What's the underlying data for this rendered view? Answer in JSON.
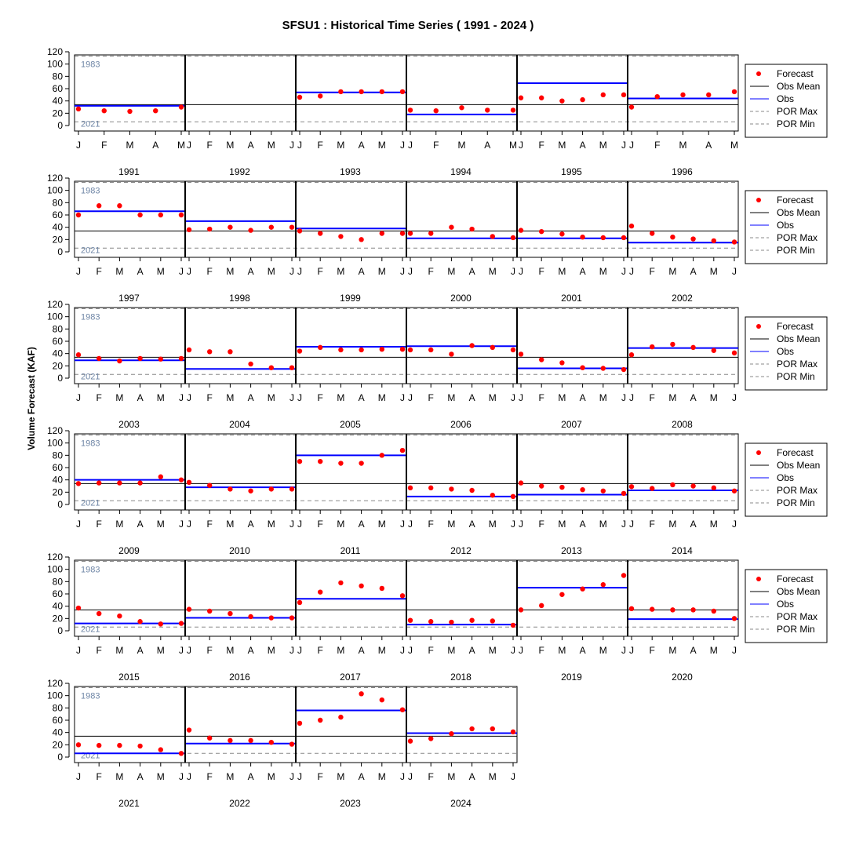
{
  "chart_data": {
    "type": "scatter",
    "title": "SFSU1 : Historical Time Series ( 1991 - 2024 )",
    "ylabel": "Volume Forecast (KAF)",
    "ylim": [
      0,
      120
    ],
    "yticks": [
      0,
      20,
      40,
      60,
      80,
      100,
      120
    ],
    "obs_mean": 34,
    "por_max": {
      "value": 113,
      "label": "1983"
    },
    "por_min": {
      "value": 6,
      "label": "2021"
    },
    "legend": [
      "Forecast",
      "Obs Mean",
      "Obs",
      "POR Max",
      "POR Min"
    ],
    "colors": {
      "forecast": "#ff0000",
      "obs": "#0000ff",
      "mean": "#000000",
      "por": "#888888",
      "porLabel": "#6f86a6"
    },
    "months": [
      "J",
      "F",
      "M",
      "A",
      "M",
      "J"
    ],
    "years": [
      {
        "year": "1991",
        "months": [
          "J",
          "F",
          "M",
          "A",
          "M"
        ],
        "obs": 32,
        "forecast": [
          27,
          24,
          23,
          24,
          30
        ]
      },
      {
        "year": "1992",
        "months": [
          "J",
          "F",
          "M",
          "A",
          "M",
          "J"
        ],
        "obs": null,
        "forecast": []
      },
      {
        "year": "1993",
        "months": [
          "J",
          "F",
          "M",
          "A",
          "M",
          "J"
        ],
        "obs": 54,
        "forecast": [
          46,
          48,
          55,
          55,
          55,
          55
        ]
      },
      {
        "year": "1994",
        "months": [
          "J",
          "F",
          "M",
          "A",
          "M"
        ],
        "obs": 18,
        "forecast": [
          25,
          24,
          29,
          25,
          25
        ]
      },
      {
        "year": "1995",
        "months": [
          "J",
          "F",
          "M",
          "A",
          "M",
          "J"
        ],
        "obs": 69,
        "forecast": [
          45,
          45,
          40,
          42,
          50,
          50
        ]
      },
      {
        "year": "1996",
        "months": [
          "J",
          "F",
          "M",
          "A",
          "M"
        ],
        "obs": 44,
        "forecast": [
          30,
          47,
          50,
          50,
          55
        ]
      },
      {
        "year": "1997",
        "months": [
          "J",
          "F",
          "M",
          "A",
          "M",
          "J"
        ],
        "obs": 66,
        "forecast": [
          60,
          75,
          75,
          60,
          60,
          60
        ]
      },
      {
        "year": "1998",
        "months": [
          "J",
          "F",
          "M",
          "A",
          "M",
          "J"
        ],
        "obs": 50,
        "forecast": [
          36,
          37,
          40,
          35,
          40,
          40
        ]
      },
      {
        "year": "1999",
        "months": [
          "J",
          "F",
          "M",
          "A",
          "M",
          "J"
        ],
        "obs": 38,
        "forecast": [
          34,
          30,
          25,
          20,
          30,
          30
        ]
      },
      {
        "year": "2000",
        "months": [
          "J",
          "F",
          "M",
          "A",
          "M",
          "J"
        ],
        "obs": 22,
        "forecast": [
          30,
          30,
          40,
          37,
          25,
          23
        ]
      },
      {
        "year": "2001",
        "months": [
          "J",
          "F",
          "M",
          "A",
          "M",
          "J"
        ],
        "obs": 22,
        "forecast": [
          35,
          33,
          29,
          24,
          23,
          23
        ]
      },
      {
        "year": "2002",
        "months": [
          "J",
          "F",
          "M",
          "A",
          "M",
          "J"
        ],
        "obs": 15,
        "forecast": [
          42,
          30,
          24,
          21,
          18,
          16
        ]
      },
      {
        "year": "2003",
        "months": [
          "J",
          "F",
          "M",
          "A",
          "M",
          "J"
        ],
        "obs": 29,
        "forecast": [
          38,
          32,
          28,
          32,
          31,
          32
        ]
      },
      {
        "year": "2004",
        "months": [
          "J",
          "F",
          "M",
          "A",
          "M",
          "J"
        ],
        "obs": 15,
        "forecast": [
          46,
          43,
          43,
          23,
          17,
          17
        ]
      },
      {
        "year": "2005",
        "months": [
          "J",
          "F",
          "M",
          "A",
          "M",
          "J"
        ],
        "obs": 51,
        "forecast": [
          44,
          50,
          46,
          46,
          47,
          47
        ]
      },
      {
        "year": "2006",
        "months": [
          "J",
          "F",
          "M",
          "A",
          "M",
          "J"
        ],
        "obs": 52,
        "forecast": [
          46,
          46,
          39,
          53,
          50,
          46
        ]
      },
      {
        "year": "2007",
        "months": [
          "J",
          "F",
          "M",
          "A",
          "M",
          "J"
        ],
        "obs": 16,
        "forecast": [
          39,
          30,
          25,
          17,
          16,
          14
        ]
      },
      {
        "year": "2008",
        "months": [
          "J",
          "F",
          "M",
          "A",
          "M",
          "J"
        ],
        "obs": 49,
        "forecast": [
          38,
          51,
          55,
          50,
          45,
          41
        ]
      },
      {
        "year": "2009",
        "months": [
          "J",
          "F",
          "M",
          "A",
          "M",
          "J"
        ],
        "obs": 40,
        "forecast": [
          34,
          35,
          35,
          35,
          45,
          40
        ]
      },
      {
        "year": "2010",
        "months": [
          "J",
          "F",
          "M",
          "A",
          "M",
          "J"
        ],
        "obs": 28,
        "forecast": [
          36,
          31,
          25,
          22,
          25,
          25
        ]
      },
      {
        "year": "2011",
        "months": [
          "J",
          "F",
          "M",
          "A",
          "M",
          "J"
        ],
        "obs": 80,
        "forecast": [
          70,
          70,
          67,
          67,
          80,
          88
        ]
      },
      {
        "year": "2012",
        "months": [
          "J",
          "F",
          "M",
          "A",
          "M",
          "J"
        ],
        "obs": 13,
        "forecast": [
          27,
          27,
          25,
          23,
          15,
          13
        ]
      },
      {
        "year": "2013",
        "months": [
          "J",
          "F",
          "M",
          "A",
          "M",
          "J"
        ],
        "obs": 16,
        "forecast": [
          35,
          30,
          28,
          24,
          22,
          18
        ]
      },
      {
        "year": "2014",
        "months": [
          "J",
          "F",
          "M",
          "A",
          "M",
          "J"
        ],
        "obs": 23,
        "forecast": [
          29,
          26,
          32,
          30,
          27,
          22
        ]
      },
      {
        "year": "2015",
        "months": [
          "J",
          "F",
          "M",
          "A",
          "M",
          "J"
        ],
        "obs": 12,
        "forecast": [
          37,
          28,
          24,
          15,
          11,
          12
        ]
      },
      {
        "year": "2016",
        "months": [
          "J",
          "F",
          "M",
          "A",
          "M",
          "J"
        ],
        "obs": 21,
        "forecast": [
          35,
          32,
          28,
          23,
          21,
          21
        ]
      },
      {
        "year": "2017",
        "months": [
          "J",
          "F",
          "M",
          "A",
          "M",
          "J"
        ],
        "obs": 52,
        "forecast": [
          46,
          63,
          78,
          73,
          69,
          57
        ]
      },
      {
        "year": "2018",
        "months": [
          "J",
          "F",
          "M",
          "A",
          "M",
          "J"
        ],
        "obs": 10,
        "forecast": [
          17,
          15,
          14,
          17,
          16,
          9
        ]
      },
      {
        "year": "2019",
        "months": [
          "J",
          "F",
          "M",
          "A",
          "M",
          "J"
        ],
        "obs": 70,
        "forecast": [
          34,
          41,
          59,
          68,
          75,
          90
        ]
      },
      {
        "year": "2020",
        "months": [
          "J",
          "F",
          "M",
          "A",
          "M",
          "J"
        ],
        "obs": 19,
        "forecast": [
          36,
          35,
          34,
          34,
          32,
          20
        ]
      },
      {
        "year": "2021",
        "months": [
          "J",
          "F",
          "M",
          "A",
          "M",
          "J"
        ],
        "obs": 6,
        "forecast": [
          20,
          19,
          19,
          18,
          12,
          6
        ]
      },
      {
        "year": "2022",
        "months": [
          "J",
          "F",
          "M",
          "A",
          "M",
          "J"
        ],
        "obs": 22,
        "forecast": [
          44,
          31,
          27,
          27,
          24,
          21
        ]
      },
      {
        "year": "2023",
        "months": [
          "J",
          "F",
          "M",
          "A",
          "M",
          "J"
        ],
        "obs": 76,
        "forecast": [
          55,
          60,
          65,
          103,
          93,
          77
        ]
      },
      {
        "year": "2024",
        "months": [
          "J",
          "F",
          "M",
          "A",
          "M",
          "J"
        ],
        "obs": 39,
        "forecast": [
          26,
          30,
          38,
          46,
          46,
          41
        ]
      }
    ]
  }
}
